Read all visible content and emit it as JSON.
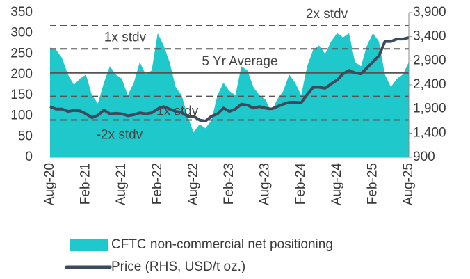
{
  "chart_data": {
    "type": "area-line",
    "categories": [
      "Aug-20",
      null,
      null,
      null,
      null,
      null,
      "Feb-21",
      null,
      null,
      null,
      null,
      null,
      "Aug-21",
      null,
      null,
      null,
      null,
      null,
      "Feb-22",
      null,
      null,
      null,
      null,
      null,
      "Aug-22",
      null,
      null,
      null,
      null,
      null,
      "Feb-23",
      null,
      null,
      null,
      null,
      null,
      "Aug-23",
      null,
      null,
      null,
      null,
      null,
      "Feb-24",
      null,
      null,
      null,
      null,
      null,
      "Aug-24",
      null,
      null,
      null,
      null,
      null,
      "Feb-25",
      null,
      null,
      null,
      null,
      null,
      "Aug-25"
    ],
    "series": [
      {
        "name": "CFTC non-commercial net positioning",
        "color": "#1fc8cb",
        "kind": "area",
        "values": [
          265,
          260,
          240,
          200,
          175,
          190,
          200,
          150,
          130,
          180,
          220,
          200,
          190,
          150,
          180,
          230,
          200,
          210,
          300,
          270,
          230,
          170,
          150,
          100,
          60,
          80,
          70,
          90,
          150,
          180,
          160,
          150,
          220,
          210,
          170,
          150,
          140,
          110,
          140,
          160,
          200,
          180,
          150,
          220,
          260,
          270,
          250,
          280,
          300,
          290,
          300,
          230,
          220,
          270,
          300,
          280,
          200,
          170,
          190,
          200,
          230
        ]
      },
      {
        "name": "Price (RHS, USD/t oz.)",
        "color": "#3d4a5c",
        "kind": "line",
        "axis": "y2",
        "values": [
          1950,
          1900,
          1900,
          1850,
          1870,
          1860,
          1800,
          1720,
          1770,
          1880,
          1800,
          1810,
          1800,
          1760,
          1780,
          1820,
          1800,
          1820,
          1900,
          1950,
          1900,
          1850,
          1830,
          1750,
          1750,
          1670,
          1650,
          1750,
          1800,
          1920,
          1850,
          1900,
          2000,
          1980,
          1920,
          1950,
          1920,
          1900,
          1950,
          2000,
          2040,
          2040,
          2030,
          2200,
          2350,
          2350,
          2330,
          2420,
          2500,
          2630,
          2700,
          2650,
          2630,
          2750,
          2880,
          3000,
          3300,
          3300,
          3350,
          3350,
          3380
        ]
      }
    ],
    "annotations": [
      {
        "label": "2x stdv",
        "value": 318,
        "dash": true
      },
      {
        "label": "1x stdv",
        "value": 262,
        "dash": true
      },
      {
        "label": "5 Yr Average",
        "value": 204,
        "dash": false
      },
      {
        "label": "-1x stdv",
        "value": 147,
        "dash": true
      },
      {
        "label": "-2x stdv",
        "value": 90,
        "dash": true
      }
    ],
    "ylim": [
      0,
      350
    ],
    "yticks": [
      0,
      50,
      100,
      150,
      200,
      250,
      300,
      350
    ],
    "y2lim": [
      900,
      3900
    ],
    "y2ticks": [
      900,
      {
        "value": 1400,
        "label": "1,400"
      },
      {
        "value": 1900,
        "label": "1,900"
      },
      {
        "value": 2400,
        "label": "2,400"
      },
      {
        "value": 2900,
        "label": "2,900"
      },
      {
        "value": 3400,
        "label": "3,400"
      },
      {
        "value": 3900,
        "label": "3,900"
      }
    ]
  }
}
